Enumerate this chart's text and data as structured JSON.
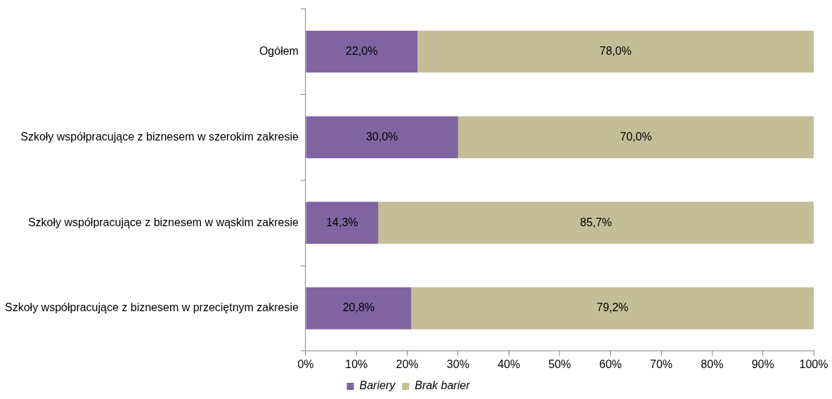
{
  "chart_data": {
    "type": "bar",
    "orientation": "horizontal",
    "stacked": true,
    "categories": [
      "Ogółem",
      "Szkoły współpracujące z biznesem w szerokim zakresie",
      "Szkoły współpracujące z biznesem w wąskim zakresie",
      "Szkoły współpracujące z biznesem w przeciętnym zakresie"
    ],
    "series": [
      {
        "name": "Bariery",
        "color": "#8064a2",
        "values": [
          22.0,
          30.0,
          14.3,
          20.8
        ],
        "value_labels": [
          "22,0%",
          "30,0%",
          "14,3%",
          "20,8%"
        ]
      },
      {
        "name": "Brak barier",
        "color": "#c4bd97",
        "values": [
          78.0,
          70.0,
          85.7,
          79.2
        ],
        "value_labels": [
          "78,0%",
          "70,0%",
          "85,7%",
          "79,2%"
        ]
      }
    ],
    "xlim": [
      0,
      100
    ],
    "xticks": [
      {
        "value": 0,
        "label": "0%"
      },
      {
        "value": 10,
        "label": "10%"
      },
      {
        "value": 20,
        "label": "20%"
      },
      {
        "value": 30,
        "label": "30%"
      },
      {
        "value": 40,
        "label": "40%"
      },
      {
        "value": 50,
        "label": "50%"
      },
      {
        "value": 60,
        "label": "60%"
      },
      {
        "value": 70,
        "label": "70%"
      },
      {
        "value": 80,
        "label": "80%"
      },
      {
        "value": 90,
        "label": "90%"
      },
      {
        "value": 100,
        "label": "100%"
      }
    ],
    "grid": false,
    "legend": "bottom"
  }
}
